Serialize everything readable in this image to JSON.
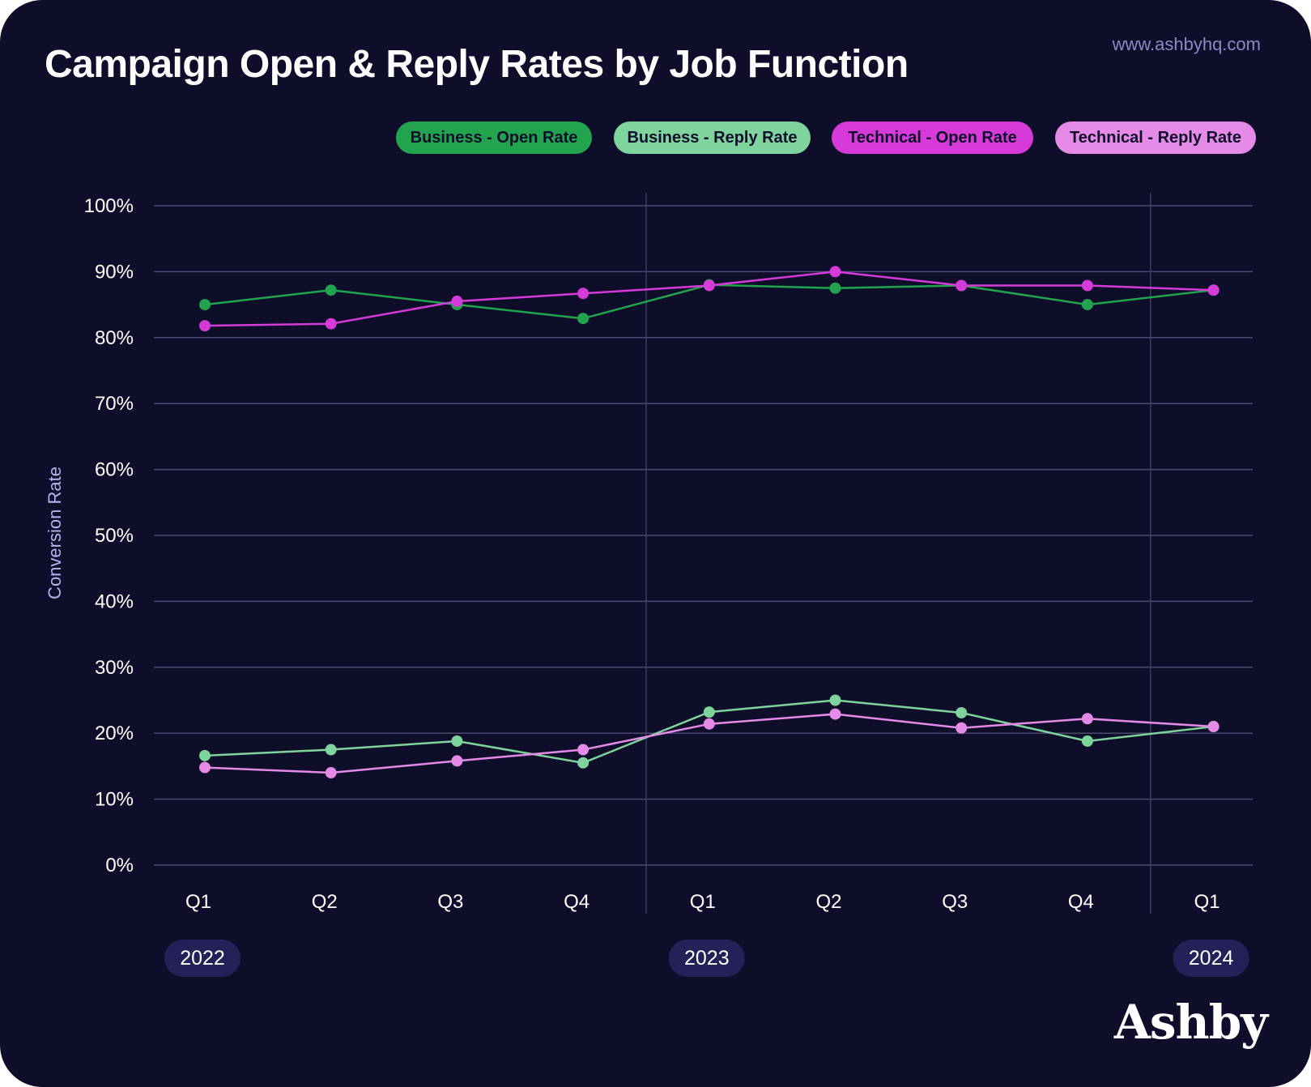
{
  "header": {
    "title": "Campaign Open & Reply Rates by Job Function",
    "url": "www.ashbyhq.com"
  },
  "brand": "Ashby",
  "colors": {
    "background": "#0e0e2a",
    "business_open": "#22a44f",
    "business_reply": "#7fd49d",
    "technical_open": "#d63ad9",
    "technical_reply": "#e58ae6",
    "year_badge": "#232157"
  },
  "chart_data": {
    "type": "line",
    "title": "Campaign Open & Reply Rates by Job Function",
    "xlabel": "",
    "ylabel": "Conversion Rate",
    "ylim": [
      0,
      100
    ],
    "y_ticks": [
      "0%",
      "10%",
      "20%",
      "30%",
      "40%",
      "50%",
      "60%",
      "70%",
      "80%",
      "90%",
      "100%"
    ],
    "categories": [
      "Q1",
      "Q2",
      "Q3",
      "Q4",
      "Q1",
      "Q2",
      "Q3",
      "Q4",
      "Q1"
    ],
    "years": [
      {
        "label": "2022",
        "start_index": 0
      },
      {
        "label": "2023",
        "start_index": 4
      },
      {
        "label": "2024",
        "start_index": 8
      }
    ],
    "grid": true,
    "legend_position": "top-right",
    "series": [
      {
        "name": "Business - Open Rate",
        "color": "#22a44f",
        "values": [
          85,
          87.2,
          85,
          82.9,
          88,
          87.5,
          87.9,
          85,
          87.2
        ]
      },
      {
        "name": "Business - Reply Rate",
        "color": "#7fd49d",
        "values": [
          16.6,
          17.5,
          18.8,
          15.5,
          23.2,
          25,
          23.1,
          18.8,
          21
        ]
      },
      {
        "name": "Technical - Open Rate",
        "color": "#d63ad9",
        "values": [
          81.8,
          82.1,
          85.5,
          86.7,
          87.9,
          90,
          87.9,
          87.9,
          87.2
        ]
      },
      {
        "name": "Technical - Reply Rate",
        "color": "#e58ae6",
        "values": [
          14.8,
          14,
          15.8,
          17.5,
          21.4,
          22.9,
          20.8,
          22.2,
          21
        ]
      }
    ]
  }
}
